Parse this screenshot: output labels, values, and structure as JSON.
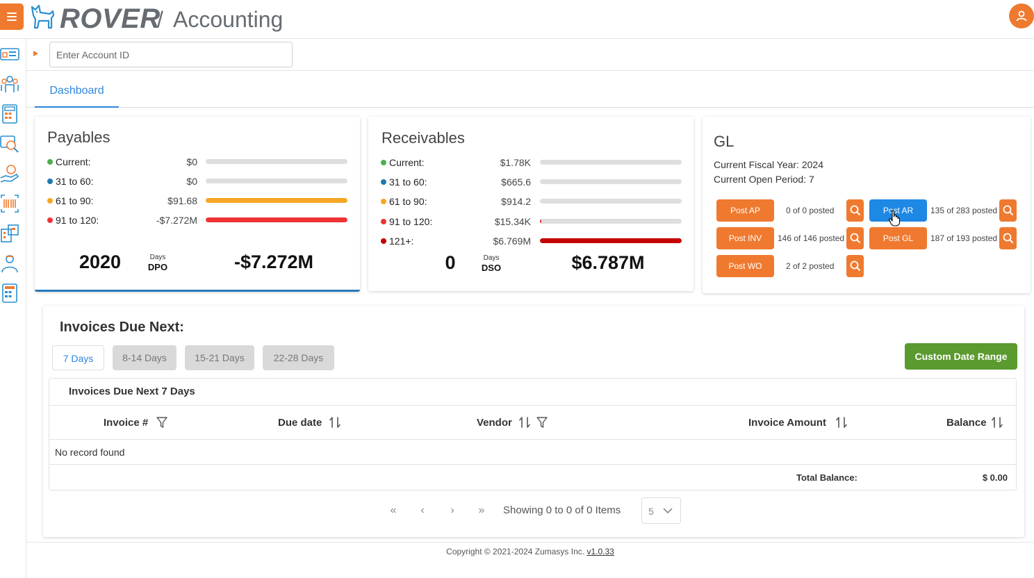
{
  "header": {
    "brand": "ROVER",
    "separator": "/",
    "module": "Accounting"
  },
  "account": {
    "placeholder": "Enter Account ID"
  },
  "tabs": [
    {
      "label": "Dashboard",
      "active": true
    }
  ],
  "payables": {
    "title": "Payables",
    "rows": [
      {
        "label": "Current:",
        "value": "$0",
        "color": "#4caf50",
        "fill": 0,
        "bar_color": "#dedede"
      },
      {
        "label": "31 to 60:",
        "value": "$0",
        "color": "#1e7bb0",
        "fill": 0,
        "bar_color": "#dedede"
      },
      {
        "label": "61 to 90:",
        "value": "$91.68",
        "color": "#f5a623",
        "fill": 1.0,
        "bar_color": "#f5a623"
      },
      {
        "label": "91 to 120:",
        "value": "-$7.272M",
        "color": "#f03434",
        "fill": 1.0,
        "bar_color": "#f03434"
      }
    ],
    "metric_number": "2020",
    "days_label": "Days",
    "metric_abbr": "DPO",
    "total": "-$7.272M"
  },
  "receivables": {
    "title": "Receivables",
    "rows": [
      {
        "label": "Current:",
        "value": "$1.78K",
        "color": "#4caf50",
        "fill": 0,
        "bar_color": "#dedede"
      },
      {
        "label": "31 to 60:",
        "value": "$665.6",
        "color": "#1e7bb0",
        "fill": 0,
        "bar_color": "#dedede"
      },
      {
        "label": "61 to 90:",
        "value": "$914.2",
        "color": "#f5a623",
        "fill": 0,
        "bar_color": "#dedede"
      },
      {
        "label": "91 to 120:",
        "value": "$15.34K",
        "color": "#f03434",
        "fill": 0.005,
        "bar_color": "#f03434"
      },
      {
        "label": "121+:",
        "value": "$6.769M",
        "color": "#c00000",
        "fill": 1.0,
        "bar_color": "#c40000"
      }
    ],
    "metric_number": "0",
    "days_label": "Days",
    "metric_abbr": "DSO",
    "total": "$6.787M"
  },
  "gl": {
    "title": "GL",
    "fiscal_year": "Current Fiscal Year: 2024",
    "open_period": "Current Open Period: 7",
    "posts": [
      {
        "label": "Post AP",
        "status": "0 of 0 posted",
        "style": "orange"
      },
      {
        "label": "Post AR",
        "status": "135 of 283 posted",
        "style": "blue"
      },
      {
        "label": "Post INV",
        "status": "146 of 146 posted",
        "style": "orange"
      },
      {
        "label": "Post GL",
        "status": "187 of 193 posted",
        "style": "orange"
      },
      {
        "label": "Post WO",
        "status": "2 of 2 posted",
        "style": "orange"
      }
    ]
  },
  "invoices": {
    "title": "Invoices Due Next:",
    "ranges": [
      "7 Days",
      "8-14 Days",
      "15-21 Days",
      "22-28 Days"
    ],
    "active_range": "7 Days",
    "custom_range": "Custom Date Range",
    "grid_caption": "Invoices Due Next 7 Days",
    "columns": [
      "Invoice #",
      "Due date",
      "Vendor",
      "Invoice Amount",
      "Balance"
    ],
    "empty": "No record found",
    "total_label": "Total Balance:",
    "total_value": "$ 0.00",
    "pager_info": "Showing 0 to 0 of 0 Items",
    "page_size": "5"
  },
  "footer": {
    "copyright": "Copyright © 2021-2024 Zumasys Inc.",
    "version": "v1.0.33"
  },
  "colors": {
    "accent": "#ef7a2f",
    "primary": "#1e88e5",
    "success": "#5a9a2e"
  }
}
